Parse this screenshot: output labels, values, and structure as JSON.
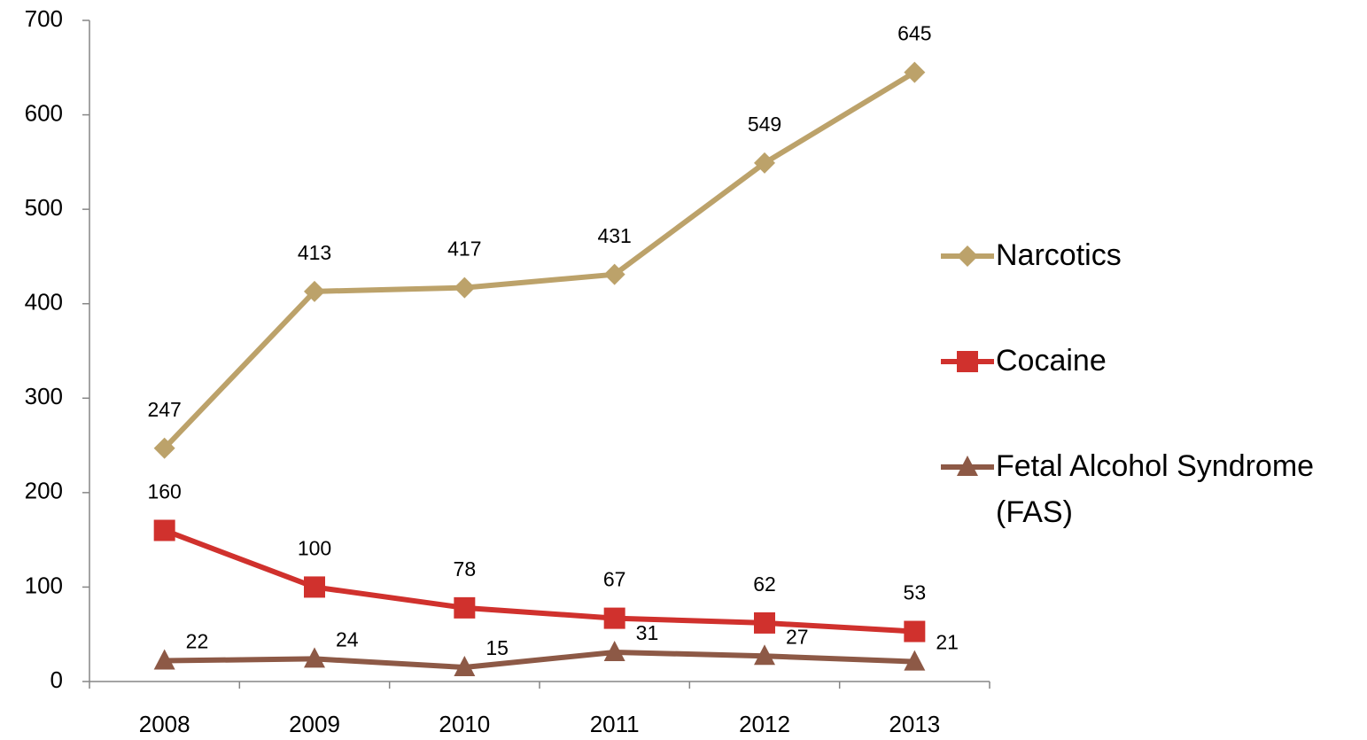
{
  "chart_data": {
    "type": "line",
    "categories": [
      "2008",
      "2009",
      "2010",
      "2011",
      "2012",
      "2013"
    ],
    "series": [
      {
        "name": "Narcotics",
        "color": "#bca26a",
        "marker": "diamond",
        "values": [
          247,
          413,
          417,
          431,
          549,
          645
        ]
      },
      {
        "name": "Cocaine",
        "color": "#d0312d",
        "marker": "square",
        "values": [
          160,
          100,
          78,
          67,
          62,
          53
        ]
      },
      {
        "name": "Fetal Alcohol Syndrome (FAS)",
        "color": "#8d5946",
        "marker": "triangle",
        "values": [
          22,
          24,
          15,
          31,
          27,
          21
        ]
      }
    ],
    "ylim": [
      0,
      700
    ],
    "yticks": [
      0,
      100,
      200,
      300,
      400,
      500,
      600,
      700
    ],
    "legend": "right",
    "grid": false
  }
}
